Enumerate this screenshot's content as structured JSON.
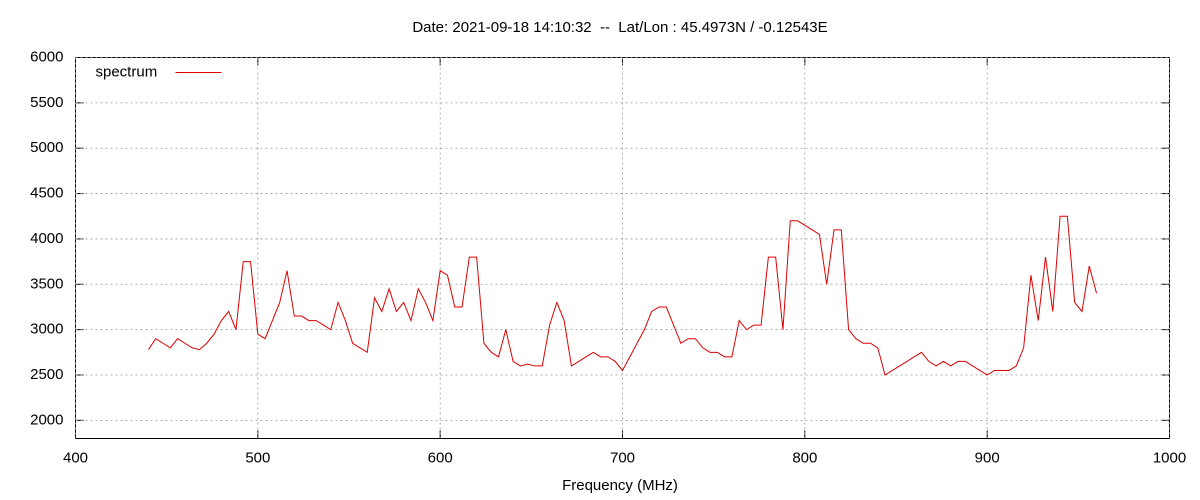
{
  "chart_data": {
    "type": "line",
    "title": "Date: 2021-09-18 14:10:32  --  Lat/Lon : 45.4973N / -0.12543E",
    "x_label": "Frequency (MHz)",
    "xlim": [
      400,
      1000
    ],
    "xticks": [
      400,
      500,
      600,
      700,
      800,
      900,
      1000
    ],
    "ylim": [
      1800,
      6000
    ],
    "yticks": [
      2000,
      2500,
      3000,
      3500,
      4000,
      4500,
      5000,
      5500,
      6000
    ],
    "grid": true,
    "legend": "upper-left",
    "x": [
      440,
      444,
      448,
      452,
      456,
      460,
      464,
      468,
      472,
      476,
      480,
      484,
      488,
      492,
      496,
      500,
      504,
      508,
      512,
      516,
      520,
      524,
      528,
      532,
      536,
      540,
      544,
      548,
      552,
      556,
      560,
      564,
      568,
      572,
      576,
      580,
      584,
      588,
      592,
      596,
      600,
      604,
      608,
      612,
      616,
      620,
      624,
      628,
      632,
      636,
      640,
      644,
      648,
      652,
      656,
      660,
      664,
      668,
      672,
      676,
      680,
      684,
      688,
      692,
      696,
      700,
      704,
      708,
      712,
      716,
      720,
      724,
      728,
      732,
      736,
      740,
      744,
      748,
      752,
      756,
      760,
      764,
      768,
      772,
      776,
      780,
      784,
      788,
      792,
      796,
      800,
      804,
      808,
      812,
      816,
      820,
      824,
      828,
      832,
      836,
      840,
      844,
      848,
      852,
      856,
      860,
      864,
      868,
      872,
      876,
      880,
      884,
      888,
      892,
      896,
      900,
      904,
      908,
      912,
      916,
      920,
      924,
      928,
      932,
      936,
      940,
      944,
      948,
      952,
      956,
      960
    ],
    "series": [
      {
        "name": "spectrum",
        "color": "#dd0000",
        "values": [
          2780,
          2900,
          2850,
          2800,
          2900,
          2850,
          2800,
          2780,
          2850,
          2950,
          3100,
          3200,
          3000,
          3750,
          3750,
          2950,
          2900,
          3100,
          3300,
          3650,
          3150,
          3150,
          3100,
          3100,
          3050,
          3000,
          3300,
          3100,
          2850,
          2800,
          2750,
          3350,
          3200,
          3450,
          3200,
          3300,
          3100,
          3450,
          3300,
          3100,
          3650,
          3600,
          3250,
          3250,
          3800,
          3800,
          2850,
          2750,
          2700,
          3000,
          2650,
          2600,
          2620,
          2600,
          2600,
          3050,
          3300,
          3100,
          2600,
          2650,
          2700,
          2750,
          2700,
          2700,
          2650,
          2550,
          2700,
          2850,
          3000,
          3200,
          3250,
          3250,
          3050,
          2850,
          2900,
          2900,
          2800,
          2750,
          2750,
          2700,
          2700,
          3100,
          3000,
          3050,
          3050,
          3800,
          3800,
          3000,
          4200,
          4200,
          4150,
          4100,
          4050,
          3500,
          4100,
          4100,
          3000,
          2900,
          2850,
          2850,
          2800,
          2500,
          2550,
          2600,
          2650,
          2700,
          2750,
          2650,
          2600,
          2650,
          2600,
          2650,
          2650,
          2600,
          2550,
          2500,
          2550,
          2550,
          2550,
          2600,
          2800,
          3600,
          3100,
          3800,
          3200,
          4250,
          4250,
          3300,
          3200,
          3700,
          3400
        ]
      }
    ]
  }
}
